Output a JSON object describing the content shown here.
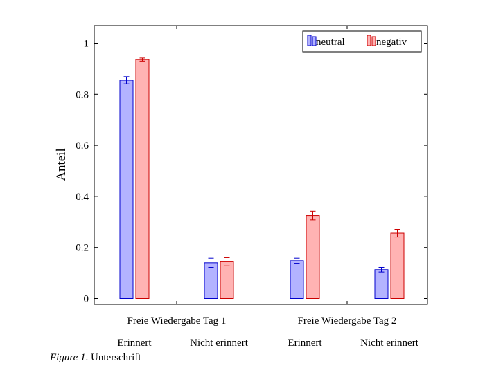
{
  "chart_data": {
    "type": "bar",
    "ylabel": "Anteil",
    "xlabel": "",
    "ylim": [
      -0.025,
      1.07
    ],
    "yticks": [
      0,
      0.2,
      0.4,
      0.6,
      0.8,
      1
    ],
    "ytick_labels": [
      "0",
      "0.2",
      "0.4",
      "0.6",
      "0.8",
      "1"
    ],
    "group_labels": [
      "Freie Wiedergabe Tag 1",
      "Freie Wiedergabe Tag 2"
    ],
    "categories": [
      "Erinnert",
      "Nicht erinnert",
      "Erinnert",
      "Nicht erinnert"
    ],
    "series": [
      {
        "name": "neutral",
        "color": "#0000cc",
        "fill": "#b3b3ff",
        "values": [
          0.855,
          0.14,
          0.148,
          0.113
        ],
        "errors": [
          0.014,
          0.018,
          0.01,
          0.009
        ]
      },
      {
        "name": "negativ",
        "color": "#cc0000",
        "fill": "#ffb3b3",
        "values": [
          0.936,
          0.144,
          0.325,
          0.256
        ],
        "errors": [
          0.006,
          0.016,
          0.017,
          0.015
        ]
      }
    ],
    "legend_position": "top-right",
    "grid": false
  },
  "caption": {
    "figure_label": "Figure 1",
    "text": "Unterschrift"
  }
}
